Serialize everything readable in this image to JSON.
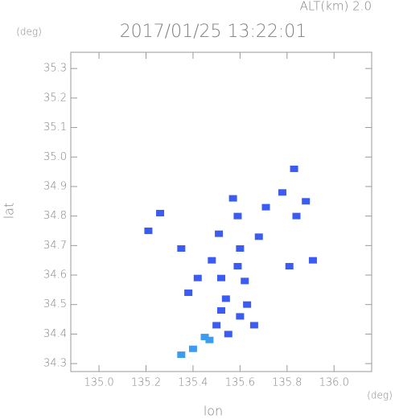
{
  "chart_data": {
    "type": "scatter",
    "alt_label": "ALT(km)  2.0",
    "title": "2017/01/25 13:22:01",
    "y_unit": "(deg)",
    "x_unit": "(deg)",
    "ylabel": "lat",
    "xlabel": "lon",
    "xlim": [
      134.88,
      136.16
    ],
    "ylim": [
      34.273,
      35.355
    ],
    "xticks": [
      {
        "value": 135,
        "label": "135.0"
      },
      135.2,
      135.4,
      135.6,
      135.8,
      {
        "value": 136,
        "label": "136.0"
      }
    ],
    "yticks": [
      35.3,
      35.2,
      35.1,
      {
        "value": 35,
        "label": "35.0"
      },
      34.9,
      34.8,
      34.7,
      34.6,
      34.5,
      34.4,
      34.3
    ],
    "series": [
      {
        "color": "#3b5cf2",
        "x": [
          135.83,
          135.78,
          135.88,
          135.84,
          135.71,
          135.68,
          135.57,
          135.59,
          135.51,
          135.21,
          135.26,
          135.35,
          135.6,
          135.48,
          135.59,
          135.52,
          135.62,
          135.42,
          135.38,
          135.54,
          135.63,
          135.52,
          135.6,
          135.5,
          135.55,
          135.81,
          135.91,
          135.66
        ],
        "values": [
          34.96,
          34.88,
          34.85,
          34.8,
          34.83,
          34.73,
          34.86,
          34.8,
          34.74,
          34.75,
          34.81,
          34.69,
          34.69,
          34.65,
          34.63,
          34.59,
          34.58,
          34.59,
          34.54,
          34.52,
          34.5,
          34.48,
          34.46,
          34.43,
          34.4,
          34.63,
          34.65,
          34.43
        ]
      },
      {
        "color": "#3c9cf0",
        "x": [
          135.45,
          135.4,
          135.35,
          135.47
        ],
        "values": [
          34.39,
          34.35,
          34.33,
          34.38
        ]
      }
    ]
  }
}
